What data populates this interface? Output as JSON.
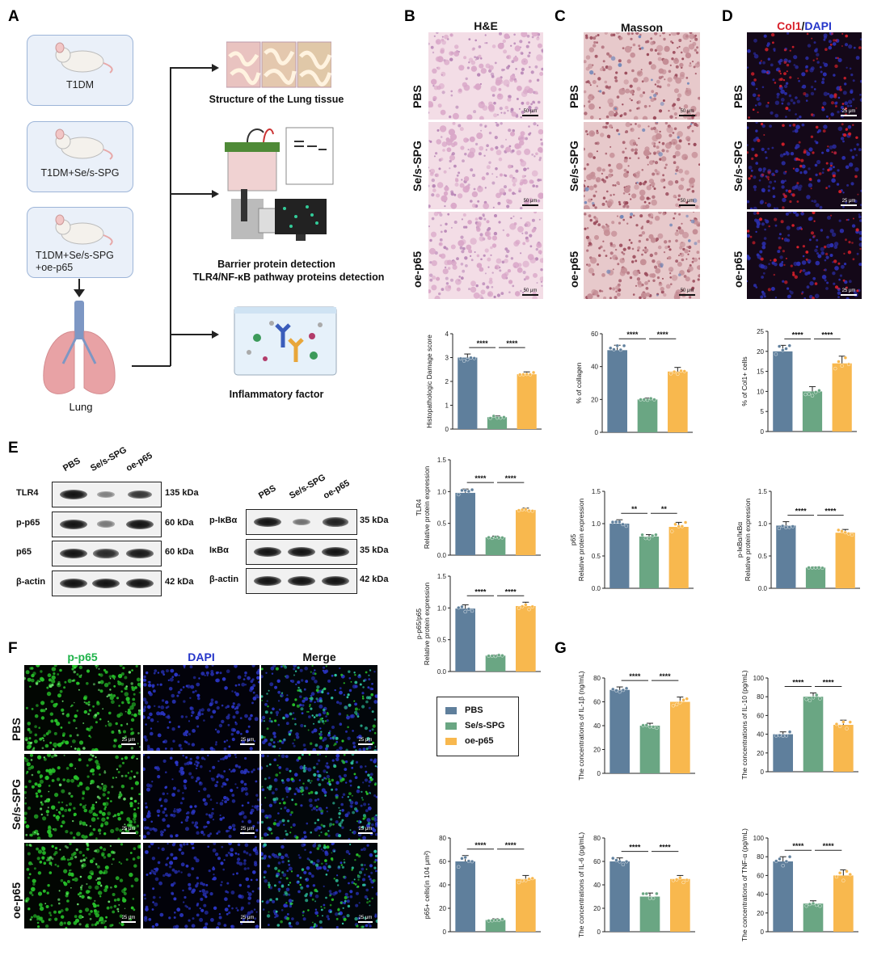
{
  "panel_letters": {
    "A": "A",
    "B": "B",
    "C": "C",
    "D": "D",
    "E": "E",
    "F": "F",
    "G": "G"
  },
  "schematic": {
    "groups": [
      "T1DM",
      "T1DM+Se/s-SPG",
      "T1DM+Se/s-SPG\n+oe-p65"
    ],
    "lung_label": "Lung",
    "outcomes": [
      "Structure of the Lung tissue",
      "Barrier protein detection",
      "TLR4/NF-κB pathway proteins detection",
      "Inflammatory factor"
    ]
  },
  "histology": {
    "he_title": "H&E",
    "masson_title": "Masson",
    "col1_title_red": "Col1",
    "col1_title_sep": "/",
    "col1_title_blue": "DAPI",
    "rows": [
      "PBS",
      "Se/s-SPG",
      "oe-p65"
    ],
    "scale_50": "50 μm",
    "scale_25": "25 μm"
  },
  "colors": {
    "PBS": "#5f7f9c",
    "Se/s-SPG": "#6aa683",
    "oe-p65": "#f8b84e"
  },
  "legend": [
    "PBS",
    "Se/s-SPG",
    "oe-p65"
  ],
  "western": {
    "lanes": [
      "PBS",
      "Se/s-SPG",
      "oe-p65"
    ],
    "left_rows": [
      {
        "label": "TLR4",
        "kda": "135 kDa",
        "intensity": [
          1.0,
          0.25,
          0.75
        ]
      },
      {
        "label": "p-p65",
        "kda": "60 kDa",
        "intensity": [
          1.0,
          0.3,
          1.0
        ]
      },
      {
        "label": "p65",
        "kda": "60 kDa",
        "intensity": [
          1.0,
          0.85,
          0.95
        ]
      },
      {
        "label": "β-actin",
        "kda": "42 kDa",
        "intensity": [
          1.0,
          1.0,
          1.0
        ]
      }
    ],
    "right_rows": [
      {
        "label": "p-IκBα",
        "kda": "35 kDa",
        "intensity": [
          1.0,
          0.35,
          0.9
        ]
      },
      {
        "label": "IκBα",
        "kda": "35 kDa",
        "intensity": [
          1.0,
          1.0,
          1.0
        ]
      },
      {
        "label": "β-actin",
        "kda": "42 kDa",
        "intensity": [
          1.0,
          1.0,
          1.0
        ]
      }
    ]
  },
  "if_panel": {
    "cols": [
      "p-p65",
      "DAPI",
      "Merge"
    ],
    "rows": [
      "PBS",
      "Se/s-SPG",
      "oe-p65"
    ],
    "scale": "25 μm"
  },
  "chart_data": [
    {
      "id": "he_score",
      "type": "bar",
      "categories": [
        "PBS",
        "Se/s-SPG",
        "oe-p65"
      ],
      "values": [
        3.0,
        0.5,
        2.3
      ],
      "sd": [
        0.15,
        0.05,
        0.1
      ],
      "ylabel": "Histopathologic Damage score",
      "ylim": [
        0,
        4
      ],
      "yticks": [
        "0",
        "1",
        "2",
        "3",
        "4"
      ],
      "sig": [
        "****",
        "****"
      ]
    },
    {
      "id": "collagen",
      "type": "bar",
      "categories": [
        "PBS",
        "Se/s-SPG",
        "oe-p65"
      ],
      "values": [
        50,
        20,
        37
      ],
      "sd": [
        3,
        0.8,
        2.5
      ],
      "ylabel": "% of collagen",
      "ylim": [
        0,
        60
      ],
      "yticks": [
        "0",
        "20",
        "40",
        "60"
      ],
      "sig": [
        "****",
        "****"
      ]
    },
    {
      "id": "col1",
      "type": "bar",
      "categories": [
        "PBS",
        "Se/s-SPG",
        "oe-p65"
      ],
      "values": [
        20,
        10,
        17
      ],
      "sd": [
        1.5,
        1.2,
        1.8
      ],
      "ylabel": "% of Col1+ cells",
      "ylim": [
        0,
        25
      ],
      "yticks": [
        "0",
        "5",
        "10",
        "15",
        "20",
        "25"
      ],
      "sig": [
        "****",
        "****"
      ]
    },
    {
      "id": "tlr4",
      "type": "bar",
      "categories": [
        "PBS",
        "Se/s-SPG",
        "oe-p65"
      ],
      "values": [
        0.98,
        0.28,
        0.71
      ],
      "sd": [
        0.06,
        0.02,
        0.03
      ],
      "ylabel": "Relative protein expression",
      "ylabel2": "TLR4",
      "ylim": [
        0,
        1.5
      ],
      "yticks": [
        "0.0",
        "0.5",
        "1.0",
        "1.5"
      ],
      "sig": [
        "****",
        "****"
      ]
    },
    {
      "id": "p65",
      "type": "bar",
      "categories": [
        "PBS",
        "Se/s-SPG",
        "oe-p65"
      ],
      "values": [
        1.0,
        0.8,
        0.95
      ],
      "sd": [
        0.06,
        0.03,
        0.07
      ],
      "ylabel": "Relative protein expression",
      "ylabel2": "p65",
      "ylim": [
        0,
        1.5
      ],
      "yticks": [
        "0.0",
        "0.5",
        "1.0",
        "1.5"
      ],
      "sig": [
        "**",
        "**"
      ]
    },
    {
      "id": "pikba",
      "type": "bar",
      "categories": [
        "PBS",
        "Se/s-SPG",
        "oe-p65"
      ],
      "values": [
        0.97,
        0.32,
        0.86
      ],
      "sd": [
        0.06,
        0.01,
        0.05
      ],
      "ylabel": "Relative protein expression",
      "ylabel2": "p-IκBα/IκBα",
      "ylim": [
        0,
        1.5
      ],
      "yticks": [
        "0.0",
        "0.5",
        "1.0",
        "1.5"
      ],
      "sig": [
        "****",
        "****"
      ]
    },
    {
      "id": "pp65",
      "type": "bar",
      "categories": [
        "PBS",
        "Se/s-SPG",
        "oe-p65"
      ],
      "values": [
        0.99,
        0.25,
        1.03
      ],
      "sd": [
        0.06,
        0.01,
        0.06
      ],
      "ylabel": "Relative protein expression",
      "ylabel2": "p-p65/p65",
      "ylim": [
        0,
        1.5
      ],
      "yticks": [
        "0.0",
        "0.5",
        "1.0",
        "1.5"
      ],
      "sig": [
        "****",
        "****"
      ]
    },
    {
      "id": "p65cells",
      "type": "bar",
      "categories": [
        "PBS",
        "Se/s-SPG",
        "oe-p65"
      ],
      "values": [
        60,
        10,
        45
      ],
      "sd": [
        5,
        1,
        3
      ],
      "ylabel": "p65+ cells(in 104 μm²)",
      "ylim": [
        0,
        80
      ],
      "yticks": [
        "0",
        "20",
        "40",
        "60",
        "80"
      ],
      "sig": [
        "****",
        "****"
      ]
    },
    {
      "id": "il1b",
      "type": "bar",
      "categories": [
        "PBS",
        "Se/s-SPG",
        "oe-p65"
      ],
      "values": [
        70,
        40,
        60
      ],
      "sd": [
        2.5,
        2,
        4
      ],
      "ylabel": "The concentrations of IL-1β (ng/mL)",
      "ylim": [
        0,
        80
      ],
      "yticks": [
        "0",
        "20",
        "40",
        "60",
        "80"
      ],
      "sig": [
        "****",
        "****"
      ]
    },
    {
      "id": "il10",
      "type": "bar",
      "categories": [
        "PBS",
        "Se/s-SPG",
        "oe-p65"
      ],
      "values": [
        40,
        80,
        50
      ],
      "sd": [
        2.5,
        4,
        5
      ],
      "ylabel": "The concentrations of IL-10 (pg/mL)",
      "ylim": [
        0,
        100
      ],
      "yticks": [
        "0",
        "20",
        "40",
        "60",
        "80",
        "100"
      ],
      "sig": [
        "****",
        "****"
      ]
    },
    {
      "id": "il6",
      "type": "bar",
      "categories": [
        "PBS",
        "Se/s-SPG",
        "oe-p65"
      ],
      "values": [
        60,
        30,
        45
      ],
      "sd": [
        3,
        3,
        3
      ],
      "ylabel": "The concentrations of IL-6 (pg/mL)",
      "ylim": [
        0,
        80
      ],
      "yticks": [
        "0",
        "20",
        "40",
        "60",
        "80"
      ],
      "sig": [
        "****",
        "****"
      ]
    },
    {
      "id": "tnfa",
      "type": "bar",
      "categories": [
        "PBS",
        "Se/s-SPG",
        "oe-p65"
      ],
      "values": [
        75,
        30,
        60
      ],
      "sd": [
        5,
        3,
        6
      ],
      "ylabel": "The concentrations of TNF-α (pg/mL)",
      "ylim": [
        0,
        100
      ],
      "yticks": [
        "0",
        "20",
        "40",
        "60",
        "80",
        "100"
      ],
      "sig": [
        "****",
        "****"
      ]
    }
  ]
}
